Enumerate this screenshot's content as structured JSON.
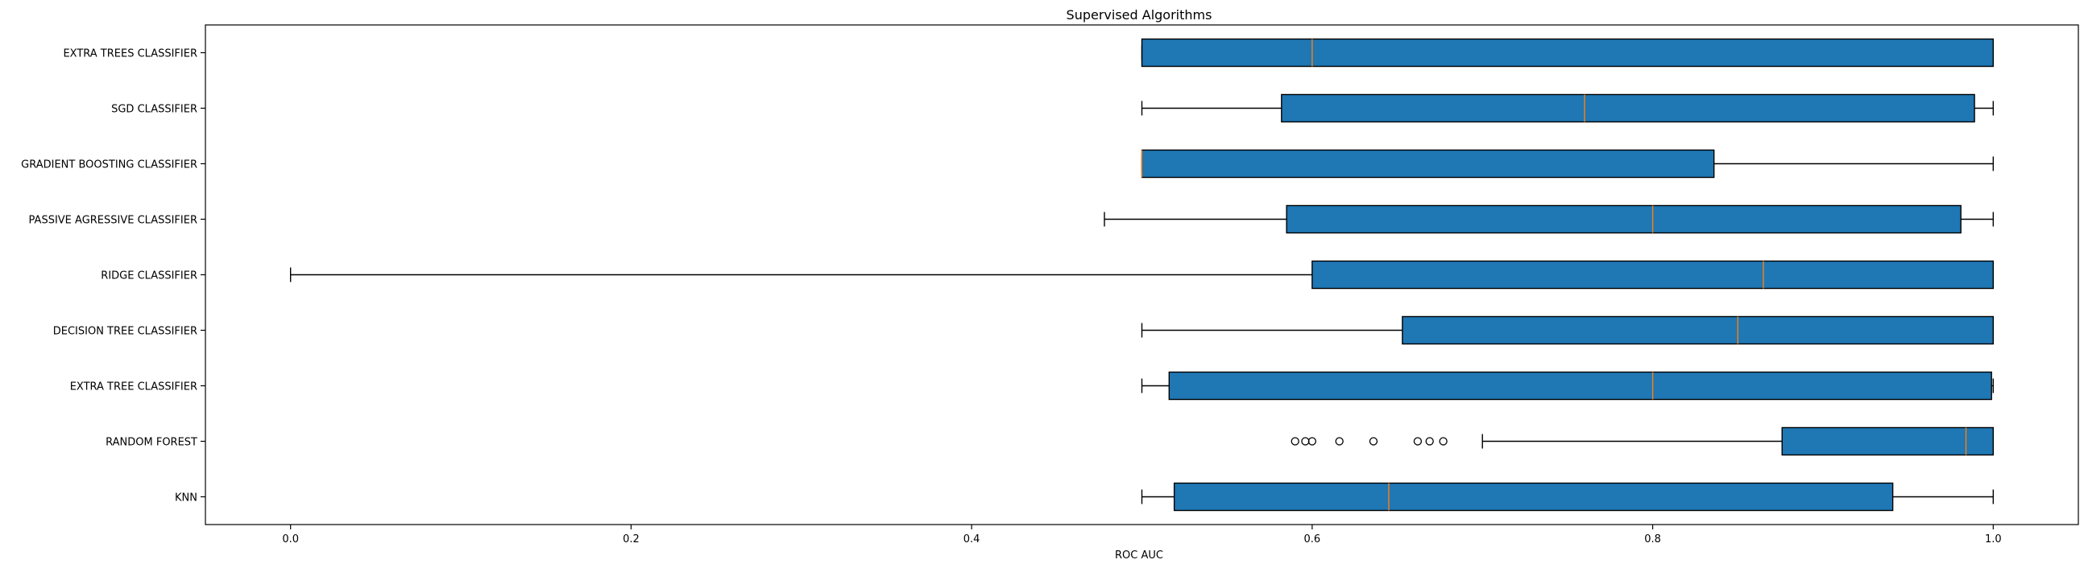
{
  "chart_data": {
    "type": "boxplot",
    "orientation": "horizontal",
    "title": "Supervised Algorithms",
    "xlabel": "ROC AUC",
    "ylabel": "",
    "xlim": [
      -0.05,
      1.05
    ],
    "xticks": [
      0.0,
      0.2,
      0.4,
      0.6,
      0.8,
      1.0
    ],
    "xtick_labels": [
      "0.0",
      "0.2",
      "0.4",
      "0.6",
      "0.8",
      "1.0"
    ],
    "grid": false,
    "legend": "none",
    "colors": {
      "box_fill": "#1f77b4",
      "median": "#ff7f0e",
      "line": "#000000"
    },
    "categories": [
      "EXTRA TREES CLASSIFIER",
      "SGD CLASSIFIER",
      "GRADIENT BOOSTING CLASSIFIER",
      "PASSIVE AGRESSIVE CLASSIFIER",
      "RIDGE CLASSIFIER",
      "DECISION TREE CLASSIFIER",
      "EXTRA TREE CLASSIFIER",
      "RANDOM FOREST",
      "KNN"
    ],
    "boxes": [
      {
        "whislo": 0.5,
        "q1": 0.5,
        "med": 0.6,
        "q3": 1.0,
        "whishi": 1.0,
        "fliers": []
      },
      {
        "whislo": 0.5,
        "q1": 0.582,
        "med": 0.76,
        "q3": 0.989,
        "whishi": 1.0,
        "fliers": []
      },
      {
        "whislo": 0.5,
        "q1": 0.5,
        "med": 0.5,
        "q3": 0.836,
        "whishi": 1.0,
        "fliers": []
      },
      {
        "whislo": 0.478,
        "q1": 0.585,
        "med": 0.8,
        "q3": 0.981,
        "whishi": 1.0,
        "fliers": []
      },
      {
        "whislo": 0.0,
        "q1": 0.6,
        "med": 0.865,
        "q3": 1.0,
        "whishi": 1.0,
        "fliers": []
      },
      {
        "whislo": 0.5,
        "q1": 0.653,
        "med": 0.85,
        "q3": 1.0,
        "whishi": 1.0,
        "fliers": []
      },
      {
        "whislo": 0.5,
        "q1": 0.516,
        "med": 0.8,
        "q3": 0.999,
        "whishi": 1.0,
        "fliers": []
      },
      {
        "whislo": 0.7,
        "q1": 0.876,
        "med": 0.984,
        "q3": 1.0,
        "whishi": 1.0,
        "fliers": [
          0.59,
          0.596,
          0.6,
          0.616,
          0.636,
          0.662,
          0.669,
          0.677
        ]
      },
      {
        "whislo": 0.5,
        "q1": 0.519,
        "med": 0.645,
        "q3": 0.941,
        "whishi": 1.0,
        "fliers": []
      }
    ]
  }
}
